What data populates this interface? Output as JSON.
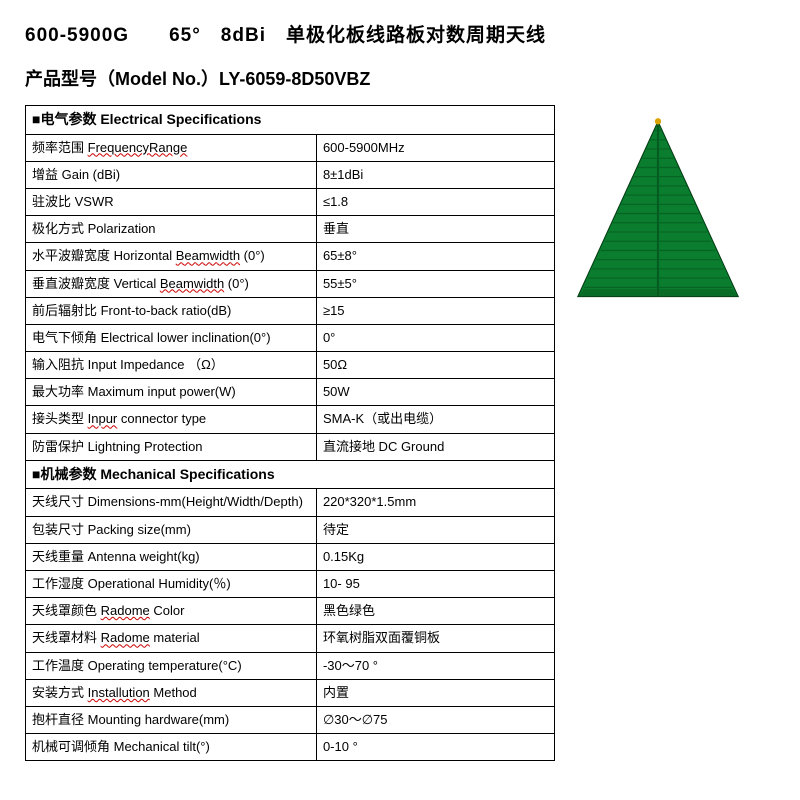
{
  "header": {
    "title1": "600-5900G　　65°　8dBi　单极化板线路板对数周期天线",
    "title2_prefix": "产品型号（Model No.）",
    "model": "LY-6059-8D50VBZ"
  },
  "sections": {
    "elec": "■电气参数 Electrical Specifications",
    "mech": "■机械参数 Mechanical Specifications"
  },
  "elec_rows": [
    {
      "l": "频率范围 FrequencyRange",
      "v": "600-5900MHz",
      "sp": [
        "FrequencyRange"
      ]
    },
    {
      "l": "增益 Gain (dBi)",
      "v": "8±1dBi"
    },
    {
      "l": "驻波比 VSWR",
      "v": "≤1.8"
    },
    {
      "l": "极化方式 Polarization",
      "v": "垂直"
    },
    {
      "l": "水平波瓣宽度 Horizontal  Beamwidth (0°)",
      "v": "65±8°",
      "sp": [
        "Beamwidth"
      ]
    },
    {
      "l": "垂直波瓣宽度 Vertical  Beamwidth (0°)",
      "v": "55±5°",
      "sp": [
        "Beamwidth"
      ]
    },
    {
      "l": "前后辐射比 Front-to-back  ratio(dB)",
      "v": "≥15"
    },
    {
      "l": "电气下倾角 Electrical  lower  inclination(0°)",
      "v": "0°"
    },
    {
      "l": "输入阻抗 Input  Impedance （Ω）",
      "v": "50Ω"
    },
    {
      "l": "最大功率 Maximum input  power(W)",
      "v": "50W"
    },
    {
      "l": "接头类型 Inpur connector  type",
      "v": "SMA-K（或出电缆）",
      "sp": [
        "Inpur"
      ]
    },
    {
      "l": "防雷保护 Lightning  Protection",
      "v": "直流接地 DC  Ground"
    }
  ],
  "mech_rows": [
    {
      "l": "天线尺寸 Dimensions-mm(Height/Width/Depth)",
      "v": "220*320*1.5mm"
    },
    {
      "l": "包装尺寸 Packing  size(mm)",
      "v": "待定"
    },
    {
      "l": "天线重量 Antenna  weight(kg)",
      "v": "0.15Kg"
    },
    {
      "l": "工作湿度 Operational  Humidity(％)",
      "v": "10- 95"
    },
    {
      "l": "天线罩颜色 Radome  Color",
      "v": "黑色绿色",
      "sp": [
        "Radome"
      ]
    },
    {
      "l": "天线罩材料 Radome  material",
      "v": "环氧树脂双面覆铜板",
      "sp": [
        "Radome"
      ]
    },
    {
      "l": "工作温度 Operating  temperature(°C)",
      "v": "-30～70 °"
    },
    {
      "l": "安装方式 Installution  Method",
      "v": "内置",
      "sp": [
        "Installution"
      ]
    },
    {
      "l": "抱杆直径 Mounting  hardware(mm)",
      "v": "∅30～∅75"
    },
    {
      "l": "机械可调倾角 Mechanical  tilt(°)",
      "v": "0-10 °"
    }
  ],
  "antenna_svg": {
    "fill_main": "#0a7d2e",
    "fill_dark": "#065c20",
    "stroke": "#033d14",
    "tip": "#d9a300",
    "width": 170,
    "height": 190
  }
}
